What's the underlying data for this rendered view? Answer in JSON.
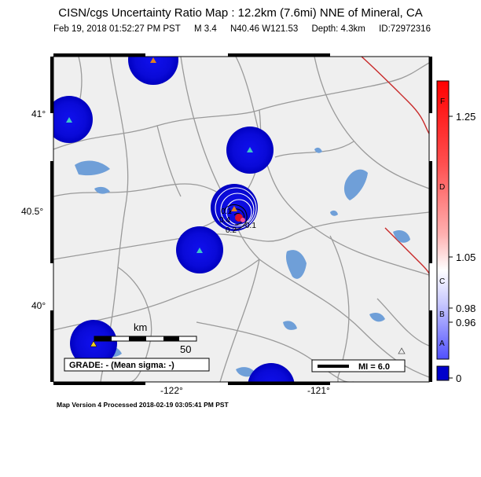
{
  "header": {
    "title": "CISN/cgs Uncertainty Ratio Map : 12.2km (7.6mi) NNE of Mineral, CA",
    "datetime": "Feb 19, 2018 01:52:27 PM PST",
    "magnitude": "M 3.4",
    "location": "N40.46 W121.53",
    "depth": "Depth: 4.3km",
    "event_id": "ID:72972316"
  },
  "map": {
    "lat_labels": [
      "41°",
      "40.5°",
      "40°"
    ],
    "lon_labels": [
      "-122°",
      "-121°"
    ],
    "contour_labels": [
      "0.1",
      "0.2",
      "0.4",
      "0.1"
    ],
    "scalebar": {
      "unit": "km",
      "max": "50"
    },
    "grade_label": "GRADE: - (Mean sigma: -)",
    "mi_label": "MI = 6.0",
    "colors": {
      "land": "#efefef",
      "water": "#6f9fd8",
      "roads": "#9a9a9a",
      "fault": "#c82828",
      "uncertainty_blue": "#0000cc",
      "station": "#3cc8c8"
    }
  },
  "colorbar": {
    "letters": [
      "F",
      "D",
      "C",
      "B",
      "A"
    ],
    "values": [
      "1.25",
      "1.05",
      "0.98",
      "0.96",
      "0"
    ],
    "bottom_tick": "0.98"
  },
  "footer": {
    "text": "Map Version 4 Processed 2018-02-19 03:05:41 PM PST"
  }
}
